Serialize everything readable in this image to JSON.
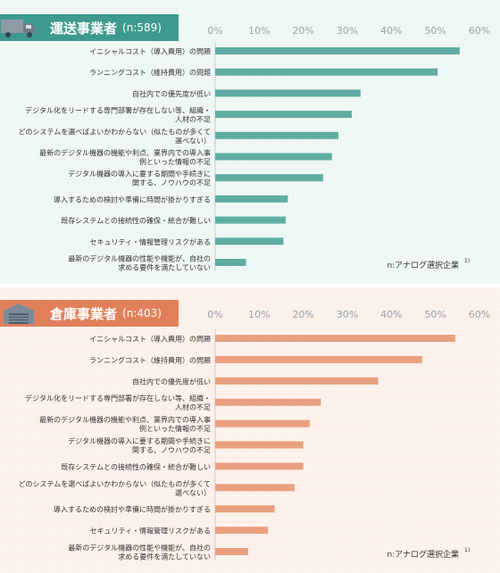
{
  "panels": [
    {
      "title": "運送事業者",
      "n_label": "(n:589)",
      "icon": "truck-icon",
      "bar_color": "#5fada2",
      "header_color": "#3e9a8e",
      "bg_color": "#eef7f3",
      "note": "n:アナログ選択企業",
      "note_sup": "1)"
    },
    {
      "title": "倉庫事業者",
      "n_label": "(n:403)",
      "icon": "warehouse-icon",
      "bar_color": "#e9a07f",
      "header_color": "#e0805a",
      "bg_color": "#fcf0ea",
      "note": "n:アナログ選択企業",
      "note_sup": "1)"
    }
  ],
  "chart_data": [
    {
      "type": "bar",
      "orientation": "horizontal",
      "xlim": [
        0,
        60
      ],
      "ticks": [
        "0%",
        "10%",
        "20%",
        "30%",
        "40%",
        "50%",
        "60%"
      ],
      "categories": [
        [
          "イニシャルコスト（導入費用）の問題"
        ],
        [
          "ランニングコスト（維持費用）の問題"
        ],
        [
          "自社内での優先度が低い"
        ],
        [
          "デジタル化をリードする専門部署が存在しない等、組織・",
          "人材の不足"
        ],
        [
          "どのシステムを選べばよいかわからない（似たものが多くて",
          "選べない）"
        ],
        [
          "最新のデジタル機器の機能や利点、業界内での導入事",
          "例といった情報の不足"
        ],
        [
          "デジタル機器の導入に要する期間や手続きに",
          "関する、ノウハウの不足"
        ],
        [
          "導入するための検討や準備に時間が掛かりすぎる"
        ],
        [
          "既存システムとの接続性の確保・統合が難しい"
        ],
        [
          "セキュリティ・情報管理リスクがある"
        ],
        [
          "最新のデジタル機器の性能や機能が、自社の",
          "求める要件を満たしていない"
        ]
      ],
      "values": [
        55.5,
        50.5,
        33,
        31,
        28,
        26.5,
        24.5,
        16.5,
        16,
        15.5,
        7
      ]
    },
    {
      "type": "bar",
      "orientation": "horizontal",
      "xlim": [
        0,
        60
      ],
      "ticks": [
        "0%",
        "10%",
        "20%",
        "30%",
        "40%",
        "50%",
        "60%"
      ],
      "categories": [
        [
          "イニシャルコスト（導入費用）の問題"
        ],
        [
          "ランニングコスト（維持費用）の問題"
        ],
        [
          "自社内での優先度が低い"
        ],
        [
          "デジタル化をリードする専門部署が存在しない等、組織・",
          "人材の不足"
        ],
        [
          "最新のデジタル機器の機能や利点、業界内での導入事",
          "例といった情報の不足"
        ],
        [
          "デジタル機器の導入に要する期間や手続きに",
          "関する、ノウハウの不足"
        ],
        [
          "既存システムとの接続性の確保・統合が難しい"
        ],
        [
          "どのシステムを選べばよいかわからない（似たものが多くて",
          "選べない）"
        ],
        [
          "導入するための検討や準備に時間が掛かりすぎる"
        ],
        [
          "セキュリティ・情報管理リスクがある"
        ],
        [
          "最新のデジタル機器の性能や機能が、自社の",
          "求める要件を満たしていない"
        ]
      ],
      "values": [
        54.5,
        47,
        37,
        24,
        21.5,
        20,
        20,
        18,
        13.5,
        12,
        7.5
      ]
    }
  ]
}
